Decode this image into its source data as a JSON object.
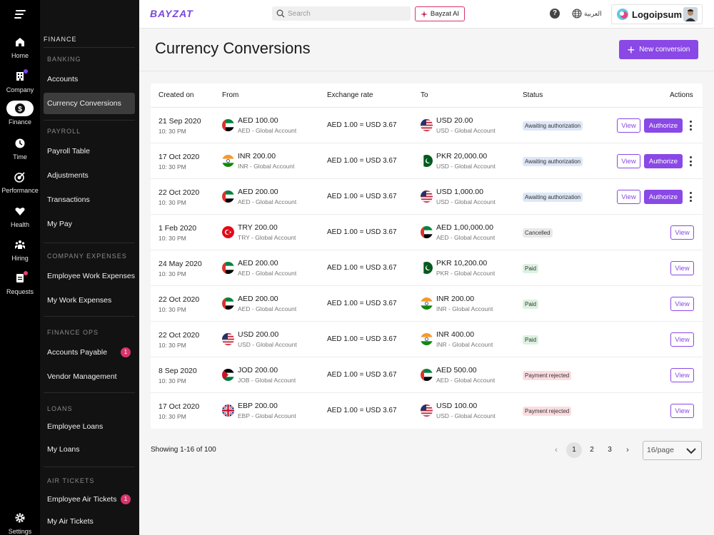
{
  "header": {
    "brand": "BAYZAT",
    "search_placeholder": "Search",
    "ai_label": "Bayzat AI",
    "help_label": "?",
    "lang_label": "العربية",
    "company_name": "Logoipsum"
  },
  "rail": {
    "items": [
      {
        "label": "Home",
        "icon": "home-icon"
      },
      {
        "label": "Company",
        "icon": "building-icon"
      },
      {
        "label": "Finance",
        "icon": "dollar-icon"
      },
      {
        "label": "Time",
        "icon": "clock-icon"
      },
      {
        "label": "Performance",
        "icon": "target-icon"
      },
      {
        "label": "Health",
        "icon": "heart-icon"
      },
      {
        "label": "Hiring",
        "icon": "people-icon"
      },
      {
        "label": "Requests",
        "icon": "clipboard-icon"
      }
    ],
    "settings_label": "Settings"
  },
  "sidebar": {
    "title": "FINANCE",
    "sections": [
      {
        "label": "BANKING",
        "items": [
          {
            "label": "Accounts"
          },
          {
            "label": "Currency Conversions"
          }
        ]
      },
      {
        "label": "PAYROLL",
        "items": [
          {
            "label": "Payroll Table"
          },
          {
            "label": "Adjustments"
          },
          {
            "label": "Transactions"
          },
          {
            "label": "My Pay"
          }
        ]
      },
      {
        "label": "COMPANY EXPENSES",
        "items": [
          {
            "label": "Employee Work Expenses"
          },
          {
            "label": "My Work Expenses"
          }
        ]
      },
      {
        "label": "FINANCE OPS",
        "items": [
          {
            "label": "Accounts Payable",
            "badge": "1"
          },
          {
            "label": "Vendor Management"
          }
        ]
      },
      {
        "label": "LOANS",
        "items": [
          {
            "label": "Employee Loans"
          },
          {
            "label": "My Loans"
          }
        ]
      },
      {
        "label": "AIR TICKETS",
        "items": [
          {
            "label": "Employee Air Tickets",
            "badge": "1"
          },
          {
            "label": "My Air Tickets"
          }
        ]
      }
    ]
  },
  "main": {
    "title": "Currency Conversions",
    "new_button": "New conversion",
    "columns": {
      "created_on": "Created on",
      "from": "From",
      "rate": "Exchange rate",
      "to": "To",
      "status": "Status",
      "actions": "Actions"
    },
    "view_label": "View",
    "authorize_label": "Authorize",
    "rows": [
      {
        "date": "21 Sep 2020",
        "time": "10: 30 PM",
        "from_flag": "ae",
        "from_amount": "AED 100.00",
        "from_sub": "AED - Global Account",
        "rate": "AED 1.00 =  USD 3.67",
        "to_flag": "us",
        "to_amount": "USD 20.00",
        "to_sub": "USD - Global Account",
        "status": "Awaiting authorization",
        "status_type": "await"
      },
      {
        "date": "17 Oct 2020",
        "time": "10: 30 PM",
        "from_flag": "in",
        "from_amount": "INR 200.00",
        "from_sub": "INR - Global Account",
        "rate": "AED 1.00 =  USD 3.67",
        "to_flag": "pk",
        "to_amount": "PKR 20,000.00",
        "to_sub": "USD - Global Account",
        "status": "Awaiting authorization",
        "status_type": "await"
      },
      {
        "date": "22 Oct 2020",
        "time": "10: 30 PM",
        "from_flag": "ae",
        "from_amount": "AED 200.00",
        "from_sub": "AED - Global Account",
        "rate": "AED 1.00 =  USD 3.67",
        "to_flag": "us",
        "to_amount": "USD 1,000.00",
        "to_sub": "USD - Global Account",
        "status": "Awaiting authorization",
        "status_type": "await"
      },
      {
        "date": "1 Feb 2020",
        "time": "10: 30 PM",
        "from_flag": "tr",
        "from_amount": "TRY 200.00",
        "from_sub": "TRY - Global Account",
        "rate": "AED 1.00 =  USD 3.67",
        "to_flag": "ae",
        "to_amount": "AED 1,00,000.00",
        "to_sub": "AED - Global Account",
        "status": "Cancelled",
        "status_type": "cancel"
      },
      {
        "date": "24 May 2020",
        "time": "10: 30 PM",
        "from_flag": "ae",
        "from_amount": "AED 200.00",
        "from_sub": "AED - Global Account",
        "rate": "AED 1.00 =  USD 3.67",
        "to_flag": "pk",
        "to_amount": "PKR 10,200.00",
        "to_sub": "PKR - Global Account",
        "status": "Paid",
        "status_type": "paid"
      },
      {
        "date": "22 Oct 2020",
        "time": "10: 30 PM",
        "from_flag": "ae",
        "from_amount": "AED 200.00",
        "from_sub": "AED - Global Account",
        "rate": "AED 1.00 =  USD 3.67",
        "to_flag": "in",
        "to_amount": "INR 200.00",
        "to_sub": "INR - Global Account",
        "status": "Paid",
        "status_type": "paid"
      },
      {
        "date": "22 Oct 2020",
        "time": "10: 30 PM",
        "from_flag": "us",
        "from_amount": "USD 200.00",
        "from_sub": "USD - Global Account",
        "rate": "AED 1.00 =  USD 3.67",
        "to_flag": "in",
        "to_amount": "INR 400.00",
        "to_sub": "INR - Global Account",
        "status": "Paid",
        "status_type": "paid"
      },
      {
        "date": "8 Sep 2020",
        "time": "10: 30 PM",
        "from_flag": "jo",
        "from_amount": "JOD 200.00",
        "from_sub": "JOB - Global Account",
        "rate": "AED 1.00 =  USD 3.67",
        "to_flag": "ae",
        "to_amount": "AED 500.00",
        "to_sub": "AED - Global Account",
        "status": "Payment rejected",
        "status_type": "reject"
      },
      {
        "date": "17 Oct 2020",
        "time": "10: 30 PM",
        "from_flag": "gb",
        "from_amount": "EBP 200.00",
        "from_sub": "EBP - Global Account",
        "rate": "AED 1.00 =  USD 3.67",
        "to_flag": "us",
        "to_amount": "USD 100.00",
        "to_sub": "USD - Global Account",
        "status": "Payment rejected",
        "status_type": "reject"
      }
    ]
  },
  "footer": {
    "showing": "Showing 1-16 of 100",
    "pages": [
      "1",
      "2",
      "3"
    ],
    "current_page": "1",
    "prev": "‹",
    "next": "›",
    "per_page": "16/page"
  },
  "colors": {
    "accent": "#8a48e6",
    "sidebar_bg": "#121212",
    "rail_bg": "#000000"
  }
}
